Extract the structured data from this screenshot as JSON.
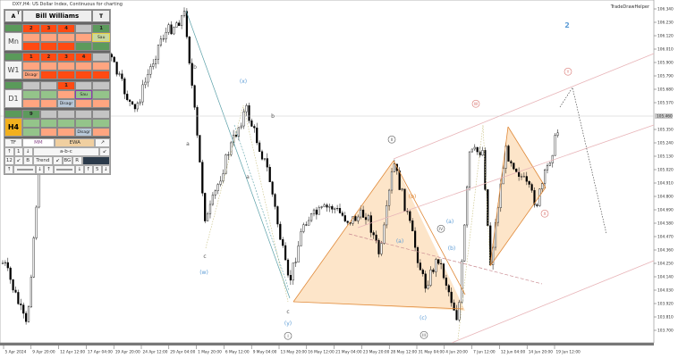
{
  "window": {
    "title": "DXY,H4: US Dollar Index, Continuous for charting",
    "helper": "TradeDrawHelper"
  },
  "colors": {
    "up": "#000000",
    "down": "#000000",
    "channel": "#e8b4b8",
    "triangle_fill": "#fde0bf",
    "triangle_edge": "#e08a3a",
    "wave_blue": "#5b9bd5",
    "wave_pink": "#d9736f",
    "teal": "#5aa0a8"
  },
  "panel": {
    "header": {
      "a": "A",
      "a_sup": "T",
      "title": "Bill Williams",
      "t": "T"
    },
    "timeframes": [
      {
        "label": "Mn",
        "highlight": false,
        "cells": [
          [
            "R:2",
            "R:3",
            "R:4",
            "Y:",
            "G:1"
          ],
          [
            "S:",
            "S:",
            "S:",
            "S:",
            "Sau:Sau"
          ],
          [
            "R:",
            "R:",
            "R:",
            "G:",
            "G:"
          ]
        ]
      },
      {
        "label": "W1",
        "highlight": false,
        "cells": [
          [
            "R:1",
            "R:2",
            "R:3",
            "R:4",
            "Y:"
          ],
          [
            "S:",
            "S:",
            "S:",
            "S:",
            "S:"
          ],
          [
            "S:Disagr",
            "R:",
            "R:",
            "R:",
            "R:"
          ]
        ]
      },
      {
        "label": "D1",
        "highlight": false,
        "cells": [
          [
            "Y:",
            "Y:",
            "R:1",
            "Y:",
            "Y:"
          ],
          [
            "L:",
            "L:",
            "S:",
            "SauP:Sau",
            "L:"
          ],
          [
            "S:",
            "S:",
            "Dis:Disagr",
            "S:",
            "S:"
          ]
        ]
      },
      {
        "label": "H4",
        "highlight": true,
        "cells": [
          [
            "G:9",
            "Y:",
            "Y:",
            "Y:",
            "Y:"
          ],
          [
            "L:",
            "L:",
            "L:",
            "L:",
            "L:"
          ],
          [
            "L:",
            "S:",
            "S:",
            "Dis:Disagr",
            "S:"
          ]
        ]
      }
    ],
    "controls": {
      "row1": [
        "TF",
        "MM",
        "EWA",
        "↗"
      ],
      "row2": [
        "↑",
        "1",
        "↓",
        "a-b-c",
        "↙"
      ],
      "row3": [
        "12",
        "↙",
        "B",
        "Trend",
        "↙",
        "BG",
        "R",
        ""
      ],
      "row4": [
        "↑",
        "",
        "↓",
        "↑",
        "",
        "↓",
        "↑",
        "5",
        "↓"
      ]
    }
  },
  "chart_data": {
    "type": "candlestick",
    "symbol": "DXY",
    "timeframe": "H4",
    "y_ticks": [
      "106.340",
      "106.230",
      "106.120",
      "106.010",
      "105.900",
      "105.790",
      "105.680",
      "105.570",
      "105.350",
      "105.240",
      "105.130",
      "105.020",
      "104.910",
      "104.800",
      "104.690",
      "104.580",
      "104.470",
      "104.360",
      "104.250",
      "104.140",
      "104.030",
      "103.920",
      "103.810",
      "103.700"
    ],
    "ylim": [
      103.62,
      106.4
    ],
    "current_price": "105.460",
    "x_ticks": [
      "5 Apr 2024",
      "9 Apr 20:00",
      "12 Apr 12:00",
      "17 Apr 04:00",
      "19 Apr 20:00",
      "24 Apr 12:00",
      "29 Apr 04:00",
      "1 May 20:00",
      "6 May 12:00",
      "9 May 04:00",
      "13 May 20:00",
      "16 May 12:00",
      "21 May 04:00",
      "23 May 20:00",
      "28 May 12:00",
      "31 May 04:00",
      "4 Jun 20:00",
      "7 Jun 12:00",
      "12 Jun 04:00",
      "14 Jun 20:00",
      "19 Jun 12:00"
    ],
    "price_path": [
      [
        "5 Apr 2024",
        104.25
      ],
      [
        "8 Apr",
        103.72
      ],
      [
        "10 Apr",
        105.15
      ],
      [
        "15 Apr",
        106.0
      ],
      [
        "19 Apr",
        106.0
      ],
      [
        "22 Apr",
        105.48
      ],
      [
        "25 Apr",
        106.1
      ],
      [
        "1 May",
        106.3
      ],
      [
        "2 May",
        105.68
      ],
      [
        "3 May",
        104.58
      ],
      [
        "7 May",
        105.16
      ],
      [
        "9 May",
        105.52
      ],
      [
        "13 May",
        105.0
      ],
      [
        "16 May",
        104.07
      ],
      [
        "17 May",
        104.6
      ],
      [
        "21 May",
        104.72
      ],
      [
        "23 May",
        104.6
      ],
      [
        "27 May",
        104.66
      ],
      [
        "29 May",
        104.3
      ],
      [
        "30 May",
        105.08
      ],
      [
        "31 May",
        104.66
      ],
      [
        "3 Jun",
        104.06
      ],
      [
        "4 Jun",
        104.3
      ],
      [
        "6 Jun",
        103.78
      ],
      [
        "7 Jun",
        105.15
      ],
      [
        "10 Jun",
        105.18
      ],
      [
        "11 Jun",
        104.24
      ],
      [
        "12 Jun",
        105.18
      ],
      [
        "13 Jun",
        105.0
      ],
      [
        "17 Jun",
        104.74
      ],
      [
        "20 Jun",
        105.39
      ]
    ],
    "wave_labels": [
      {
        "text": "2",
        "color": "blue",
        "bold": true
      },
      {
        "text": "Y",
        "circle": true,
        "color": "pink"
      },
      {
        "text": "W",
        "circle": true,
        "color": "pink"
      },
      {
        "text": "X",
        "circle": true,
        "color": "pink"
      },
      {
        "text": "(x)",
        "color": "blue"
      },
      {
        "text": "b"
      },
      {
        "text": "a"
      },
      {
        "text": "c"
      },
      {
        "text": "(w)",
        "color": "blue"
      },
      {
        "text": "b"
      },
      {
        "text": "a"
      },
      {
        "text": "c"
      },
      {
        "text": "(y)",
        "color": "blue"
      },
      {
        "text": "I",
        "circle": true
      },
      {
        "text": "II",
        "circle": true
      },
      {
        "text": "(b)",
        "color": "orange"
      },
      {
        "text": "(a)",
        "color": "blue"
      },
      {
        "text": "(c)",
        "color": "blue"
      },
      {
        "text": "III",
        "circle": true
      },
      {
        "text": "IV",
        "circle": true
      },
      {
        "text": "(b)",
        "color": "blue"
      },
      {
        "text": "(a)",
        "color": "blue"
      }
    ]
  }
}
